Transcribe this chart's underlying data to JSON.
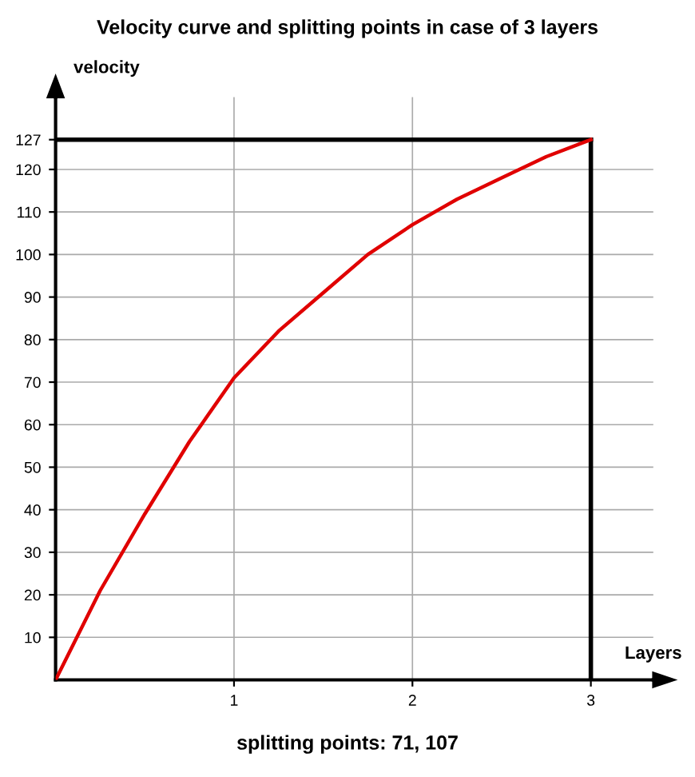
{
  "chart_data": {
    "type": "line",
    "title": "Velocity curve and splitting points in case of 3 layers",
    "xlabel": "Layers",
    "ylabel": "velocity",
    "x": [
      0,
      0.25,
      0.5,
      0.75,
      1,
      1.25,
      1.5,
      1.75,
      2,
      2.25,
      2.5,
      2.75,
      3
    ],
    "series": [
      {
        "color": "#e00000",
        "values": [
          0,
          21,
          39,
          56,
          71,
          82,
          91,
          100,
          107,
          113,
          118,
          123,
          127
        ]
      }
    ],
    "xlim": [
      0,
      3.35
    ],
    "ylim": [
      0,
      137
    ],
    "xticks": [
      1,
      2,
      3
    ],
    "yticks": [
      10,
      20,
      30,
      40,
      50,
      60,
      70,
      80,
      90,
      100,
      110,
      120,
      127
    ],
    "grid": true,
    "marker": "none",
    "line_style": "solid",
    "legend": false,
    "annotations": [
      "splitting points: 71, 107"
    ]
  }
}
